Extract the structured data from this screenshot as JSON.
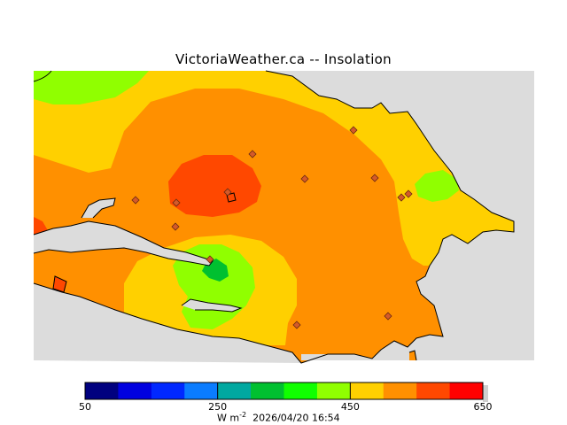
{
  "title": "VictoriaWeather.ca -- Insolation",
  "units_prefix": "W m",
  "units_exp": "-2",
  "timestamp": "2026/04/20 16:54",
  "colorbar": {
    "tick_labels": [
      "50",
      "250",
      "450",
      "650"
    ],
    "range": [
      50,
      650
    ],
    "step": 50,
    "colors": [
      "#00007f",
      "#0000e0",
      "#0028ff",
      "#0a7cff",
      "#00a8a0",
      "#00c030",
      "#10ff00",
      "#90ff00",
      "#ffd000",
      "#ff9000",
      "#ff4800",
      "#ff0000"
    ]
  },
  "colors": {
    "land_no_data": "#dcdcdc",
    "station_marker": "#d45a2a",
    "zone_350_400": "#90ff00",
    "zone_400_450": "#ffd000",
    "zone_450_500": "#ff9000",
    "zone_500_550": "#ff4800",
    "zone_550_600": "#ff0000",
    "zone_300_350": "#00c030"
  }
}
